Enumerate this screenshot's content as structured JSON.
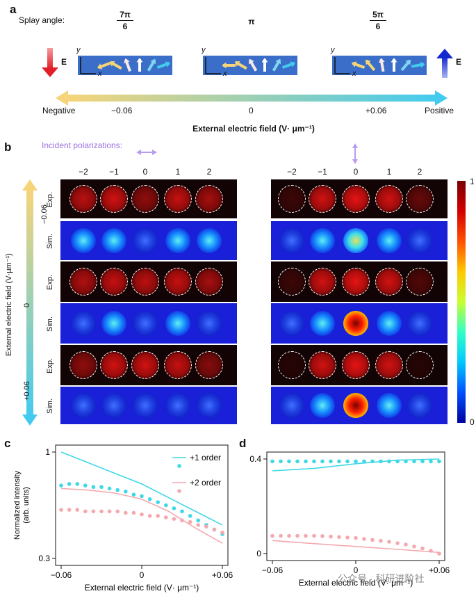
{
  "panel_a": {
    "label": "a",
    "splay_label": "Splay angle:",
    "splay_angles": [
      {
        "num": "7π",
        "den": "6"
      },
      {
        "num": "π",
        "den": ""
      },
      {
        "num": "5π",
        "den": "6"
      }
    ],
    "axis_y": "y",
    "axis_x": "x",
    "e_label": "E",
    "field_ticks": [
      "Negative",
      "−0.06",
      "0",
      "+0.06",
      "Positive"
    ],
    "field_title": "External electric field (V· μm⁻¹)",
    "colors": {
      "negative_arrow": "#e8353a",
      "positive_arrow": "#1f2fd6",
      "bar_left": "#f6d479",
      "bar_right": "#43cbef",
      "cell_blue": "#3a6ec8"
    }
  },
  "panel_b": {
    "label": "b",
    "incident_label": "Incident polarizations:",
    "orders": [
      "−2",
      "−1",
      "0",
      "1",
      "2"
    ],
    "row_labels": [
      "Exp.",
      "Sim.",
      "Exp.",
      "Sim.",
      "Exp.",
      "Sim."
    ],
    "side_axis_ticks": [
      "−0.06",
      "0",
      "+0.06"
    ],
    "side_axis_title": "External electric field (V·μm⁻¹)",
    "colorbar_ticks": [
      "1",
      "0"
    ]
  },
  "chart_data": [
    {
      "type": "scatter",
      "panel": "c",
      "xlabel": "External electric field (V· μm⁻¹)",
      "ylabel": "Normalized intensity (arb. units)",
      "xticks": [
        "−0.06",
        "0",
        "+0.06"
      ],
      "yticks": [
        "1",
        "0.3"
      ],
      "xlim": [
        -0.06,
        0.06
      ],
      "ylim": [
        0.3,
        1.0
      ],
      "series": [
        {
          "name": "+1 order",
          "color": "#3ed8e6",
          "points_x": [
            -0.06,
            -0.054,
            -0.048,
            -0.042,
            -0.036,
            -0.03,
            -0.024,
            -0.018,
            -0.012,
            -0.006,
            0,
            0.006,
            0.012,
            0.018,
            0.024,
            0.03,
            0.036,
            0.042,
            0.048,
            0.054,
            0.06
          ],
          "points_y": [
            0.78,
            0.79,
            0.79,
            0.78,
            0.77,
            0.77,
            0.76,
            0.75,
            0.74,
            0.72,
            0.71,
            0.69,
            0.67,
            0.65,
            0.63,
            0.61,
            0.58,
            0.55,
            0.52,
            0.49,
            0.46
          ],
          "line_x": [
            -0.06,
            -0.04,
            -0.02,
            0,
            0.02,
            0.04,
            0.06
          ],
          "line_y": [
            1.0,
            0.93,
            0.86,
            0.79,
            0.7,
            0.61,
            0.52
          ]
        },
        {
          "name": "+2 order",
          "color": "#f4a9ae",
          "points_x": [
            -0.06,
            -0.054,
            -0.048,
            -0.042,
            -0.036,
            -0.03,
            -0.024,
            -0.018,
            -0.012,
            -0.006,
            0,
            0.006,
            0.012,
            0.018,
            0.024,
            0.03,
            0.036,
            0.042,
            0.048,
            0.054,
            0.06
          ],
          "points_y": [
            0.62,
            0.62,
            0.62,
            0.61,
            0.61,
            0.61,
            0.61,
            0.61,
            0.6,
            0.6,
            0.59,
            0.58,
            0.58,
            0.57,
            0.56,
            0.55,
            0.54,
            0.52,
            0.51,
            0.49,
            0.47
          ],
          "line_x": [
            -0.06,
            -0.04,
            -0.02,
            0,
            0.02,
            0.04,
            0.06
          ],
          "line_y": [
            0.76,
            0.75,
            0.73,
            0.69,
            0.61,
            0.5,
            0.4
          ]
        }
      ]
    },
    {
      "type": "scatter",
      "panel": "d",
      "xlabel": "External electric field (V· μm⁻¹)",
      "xticks": [
        "−0.06",
        "0",
        "+0.06"
      ],
      "yticks": [
        "0.4",
        "0"
      ],
      "xlim": [
        -0.06,
        0.06
      ],
      "ylim": [
        0,
        0.4
      ],
      "series": [
        {
          "color": "#3ed8e6",
          "points_x": [
            -0.06,
            -0.054,
            -0.048,
            -0.042,
            -0.036,
            -0.03,
            -0.024,
            -0.018,
            -0.012,
            -0.006,
            0,
            0.006,
            0.012,
            0.018,
            0.024,
            0.03,
            0.036,
            0.042,
            0.048,
            0.054,
            0.06
          ],
          "points_y": [
            0.39,
            0.39,
            0.39,
            0.39,
            0.39,
            0.39,
            0.39,
            0.39,
            0.39,
            0.39,
            0.39,
            0.39,
            0.39,
            0.39,
            0.39,
            0.39,
            0.39,
            0.39,
            0.39,
            0.39,
            0.39
          ],
          "line_x": [
            -0.06,
            -0.03,
            0,
            0.03,
            0.06
          ],
          "line_y": [
            0.35,
            0.36,
            0.38,
            0.395,
            0.4
          ]
        },
        {
          "color": "#f4a9ae",
          "points_x": [
            -0.06,
            -0.054,
            -0.048,
            -0.042,
            -0.036,
            -0.03,
            -0.024,
            -0.018,
            -0.012,
            -0.006,
            0,
            0.006,
            0.012,
            0.018,
            0.024,
            0.03,
            0.036,
            0.042,
            0.048,
            0.054,
            0.06
          ],
          "points_y": [
            0.075,
            0.075,
            0.075,
            0.075,
            0.075,
            0.075,
            0.074,
            0.072,
            0.07,
            0.068,
            0.066,
            0.062,
            0.058,
            0.054,
            0.05,
            0.044,
            0.038,
            0.03,
            0.022,
            0.012,
            0.0
          ],
          "line_x": [
            -0.06,
            -0.03,
            0,
            0.03,
            0.06
          ],
          "line_y": [
            0.055,
            0.042,
            0.03,
            0.018,
            0.005
          ]
        }
      ]
    }
  ],
  "watermark": "公众号 · 科研进阶社"
}
